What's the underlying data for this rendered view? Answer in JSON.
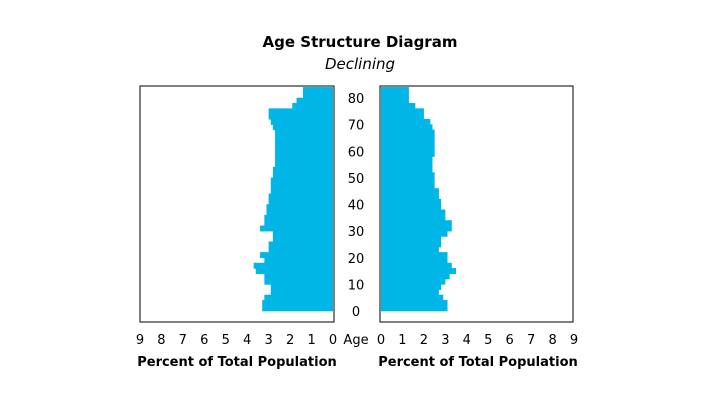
{
  "title": "Age Structure Diagram",
  "subtitle": "Declining",
  "colors": {
    "bar": "#00b6e6",
    "frame": "#000000"
  },
  "chart_data": {
    "type": "bar",
    "orientation": "horizontal-population-pyramid",
    "title": "Age Structure Diagram",
    "subtitle": "Declining",
    "age_axis_label": "Age",
    "age_ticks": [
      0,
      10,
      20,
      30,
      40,
      50,
      60,
      70,
      80
    ],
    "age_ylim": [
      0,
      84
    ],
    "age_bin_starts": [
      0,
      2,
      4,
      6,
      8,
      10,
      12,
      14,
      16,
      18,
      20,
      22,
      24,
      26,
      28,
      30,
      32,
      34,
      36,
      38,
      40,
      42,
      44,
      46,
      48,
      50,
      52,
      54,
      56,
      58,
      60,
      62,
      64,
      66,
      68,
      70,
      72,
      74,
      76,
      78,
      80,
      82
    ],
    "x_ticks": [
      9,
      8,
      7,
      6,
      5,
      4,
      3,
      2,
      1,
      0
    ],
    "xlim": [
      0,
      9
    ],
    "left_xlabel": "Percent of Total Population",
    "right_xlabel": "Percent of Total Population",
    "series": [
      {
        "side": "left",
        "values": [
          3.3,
          3.3,
          3.2,
          2.9,
          2.9,
          3.2,
          3.2,
          3.6,
          3.7,
          3.2,
          3.4,
          3.0,
          3.0,
          2.8,
          2.8,
          3.4,
          3.2,
          3.2,
          3.1,
          3.1,
          3.0,
          3.0,
          2.9,
          2.9,
          2.9,
          2.8,
          2.8,
          2.7,
          2.7,
          2.7,
          2.7,
          2.7,
          2.7,
          2.7,
          2.8,
          2.9,
          3.0,
          3.0,
          1.9,
          1.7,
          1.4,
          1.4
        ]
      },
      {
        "side": "right",
        "values": [
          3.1,
          3.1,
          2.9,
          2.7,
          2.8,
          3.0,
          3.2,
          3.5,
          3.3,
          3.1,
          3.1,
          2.7,
          2.8,
          2.8,
          3.1,
          3.3,
          3.3,
          3.0,
          3.0,
          2.8,
          2.8,
          2.7,
          2.7,
          2.5,
          2.5,
          2.5,
          2.4,
          2.4,
          2.4,
          2.5,
          2.5,
          2.5,
          2.5,
          2.5,
          2.4,
          2.3,
          2.0,
          2.0,
          1.6,
          1.3,
          1.3,
          1.3
        ]
      }
    ]
  }
}
